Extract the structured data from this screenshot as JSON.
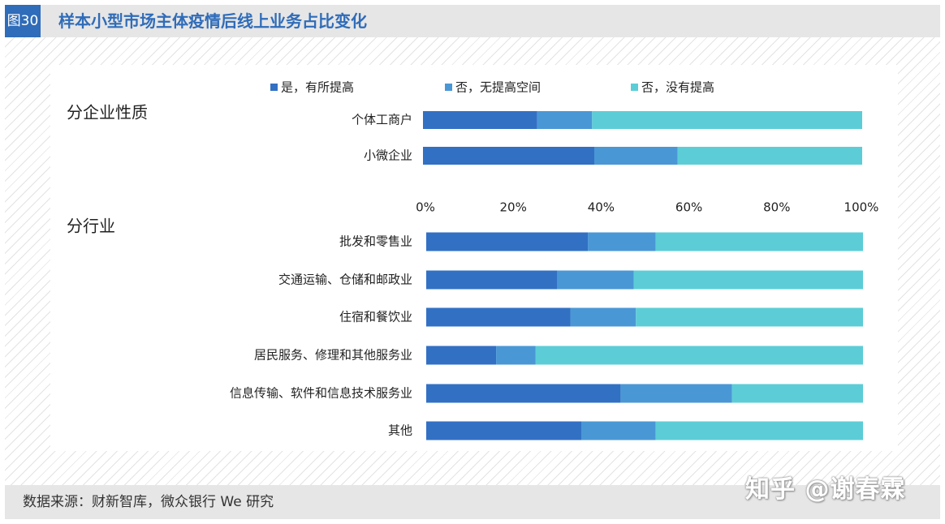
{
  "header": {
    "figure_label": "图30",
    "title": "样本小型市场主体疫情后线上业务占比变化"
  },
  "footer": {
    "source": "数据来源：财新智库，微众银行 We 研究"
  },
  "watermark": "知乎 @谢春霖",
  "chart_data": {
    "type": "bar",
    "orientation": "horizontal",
    "stacked": true,
    "legend": {
      "placement": "top",
      "entries": [
        "是，有所提高",
        "否，无提高空间",
        "否，没有提高"
      ]
    },
    "colors": [
      "#3270c4",
      "#4a97d6",
      "#5ccdd7"
    ],
    "xlim": [
      0,
      100
    ],
    "x_ticks": [
      "0%",
      "20%",
      "40%",
      "60%",
      "80%",
      "100%"
    ],
    "groups": [
      {
        "name": "分企业性质",
        "categories": [
          "个体工商户",
          "小微企业"
        ],
        "series": [
          {
            "name": "是，有所提高",
            "values": [
              26,
              39
            ]
          },
          {
            "name": "否，无提高空间",
            "values": [
              12.5,
              19
            ]
          },
          {
            "name": "否，没有提高",
            "values": [
              61.5,
              42
            ]
          }
        ]
      },
      {
        "name": "分行业",
        "categories": [
          "批发和零售业",
          "交通运输、仓储和邮政业",
          "住宿和餐饮业",
          "居民服务、修理和其他服务业",
          "信息传输、软件和信息技术服务业",
          "其他"
        ],
        "series": [
          {
            "name": "是，有所提高",
            "values": [
              37,
              30,
              33,
              16,
              44.5,
              35.5
            ]
          },
          {
            "name": "否，无提高空间",
            "values": [
              15.5,
              17.5,
              15,
              9,
              25.5,
              17
            ]
          },
          {
            "name": "否，没有提高",
            "values": [
              47.5,
              52.5,
              52,
              75,
              30,
              47.5
            ]
          }
        ]
      }
    ]
  }
}
